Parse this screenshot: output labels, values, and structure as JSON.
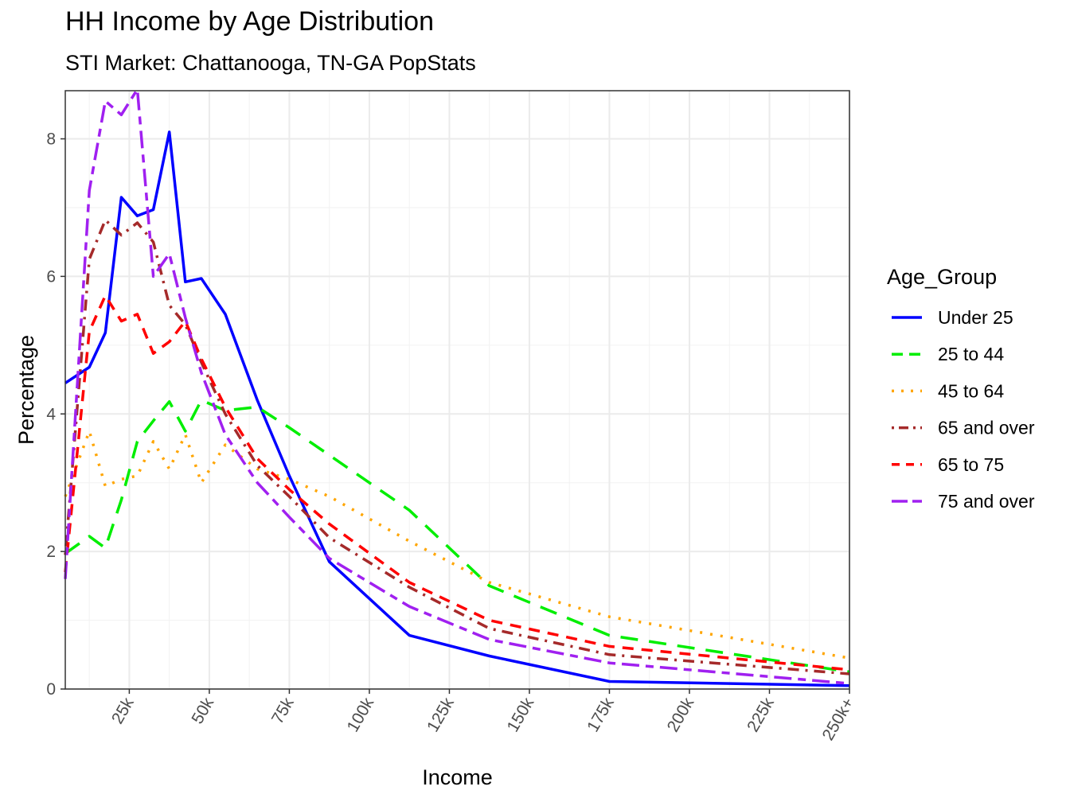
{
  "chart_data": {
    "type": "line",
    "title": "HH Income by Age Distribution",
    "subtitle": "STI Market: Chattanooga, TN-GA PopStats",
    "xlabel": "Income",
    "ylabel": "Percentage",
    "x_tick_labels": [
      "25k",
      "50k",
      "75k",
      "100k",
      "125k",
      "150k",
      "175k",
      "200k",
      "225k",
      "250k+"
    ],
    "x_tick_values": [
      25,
      50,
      75,
      100,
      125,
      150,
      175,
      200,
      225,
      250
    ],
    "y_tick_labels": [
      "0",
      "2",
      "4",
      "6",
      "8"
    ],
    "y_tick_values": [
      0,
      2,
      4,
      6,
      8
    ],
    "xlim": [
      5,
      250
    ],
    "ylim": [
      0,
      8.7
    ],
    "x": [
      5,
      12.5,
      17.5,
      22.5,
      27.5,
      32.5,
      37.5,
      42.5,
      47.5,
      55,
      65,
      75,
      87.5,
      112.5,
      137.5,
      175,
      250
    ],
    "grid": true,
    "legend_title": "Age_Group",
    "legend_position": "right",
    "series": [
      {
        "name": "Under 25",
        "color": "#0000FF",
        "dash": "solid",
        "values": [
          4.45,
          4.68,
          5.18,
          7.15,
          6.88,
          6.97,
          8.1,
          5.92,
          5.97,
          5.45,
          4.2,
          3.1,
          1.85,
          0.78,
          0.48,
          0.11,
          0.05
        ]
      },
      {
        "name": "25 to 44",
        "color": "#00EE00",
        "dash": "longdash",
        "values": [
          1.97,
          2.22,
          2.05,
          2.75,
          3.6,
          3.9,
          4.18,
          3.75,
          4.2,
          4.05,
          4.1,
          3.8,
          3.4,
          2.6,
          1.5,
          0.78,
          0.25
        ]
      },
      {
        "name": "45 to 64",
        "color": "#FFA500",
        "dash": "dotted",
        "values": [
          2.8,
          3.75,
          2.95,
          3.05,
          3.1,
          3.6,
          3.2,
          3.7,
          3.0,
          3.55,
          3.2,
          3.05,
          2.8,
          2.15,
          1.55,
          1.05,
          0.45
        ]
      },
      {
        "name": "65 and over",
        "color": "#A52A2A",
        "dash": "dotdash",
        "values": [
          1.95,
          6.25,
          6.82,
          6.6,
          6.78,
          6.5,
          5.58,
          5.3,
          4.75,
          4.0,
          3.25,
          2.8,
          2.2,
          1.48,
          0.88,
          0.5,
          0.22
        ]
      },
      {
        "name": "65 to 75",
        "color": "#FF0000",
        "dash": "dashed",
        "values": [
          1.7,
          5.2,
          5.72,
          5.35,
          5.45,
          4.88,
          5.05,
          5.35,
          4.8,
          4.1,
          3.35,
          2.9,
          2.4,
          1.55,
          1.0,
          0.62,
          0.28
        ]
      },
      {
        "name": "75 and over",
        "color": "#A020F0",
        "dash": "twodash",
        "values": [
          1.6,
          7.25,
          8.55,
          8.35,
          8.72,
          6.0,
          6.33,
          5.4,
          4.6,
          3.7,
          3.0,
          2.5,
          1.9,
          1.2,
          0.72,
          0.38,
          0.08
        ]
      }
    ]
  }
}
